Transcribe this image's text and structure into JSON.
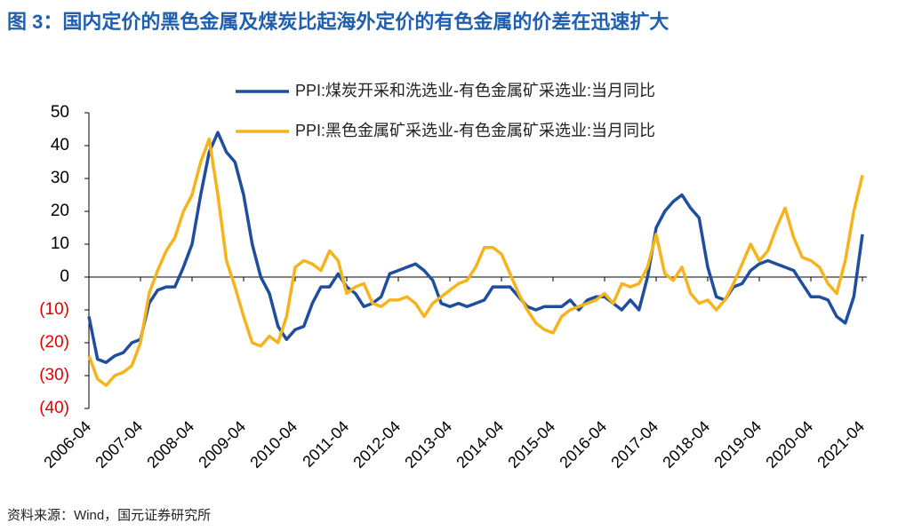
{
  "chart_data": {
    "type": "line",
    "title": "图 3：国内定价的黑色金属及煤炭比起海外定价的有色金属的价差在迅速扩大",
    "source": "资料来源：Wind，国元证券研究所",
    "x": [
      "2006-04",
      "2006-06",
      "2006-08",
      "2006-10",
      "2006-12",
      "2007-02",
      "2007-04",
      "2007-06",
      "2007-08",
      "2007-10",
      "2007-12",
      "2008-02",
      "2008-04",
      "2008-06",
      "2008-08",
      "2008-10",
      "2008-12",
      "2009-02",
      "2009-04",
      "2009-06",
      "2009-08",
      "2009-10",
      "2009-12",
      "2010-02",
      "2010-04",
      "2010-06",
      "2010-08",
      "2010-10",
      "2010-12",
      "2011-02",
      "2011-04",
      "2011-06",
      "2011-08",
      "2011-10",
      "2011-12",
      "2012-02",
      "2012-04",
      "2012-06",
      "2012-08",
      "2012-10",
      "2012-12",
      "2013-02",
      "2013-04",
      "2013-06",
      "2013-08",
      "2013-10",
      "2013-12",
      "2014-02",
      "2014-04",
      "2014-06",
      "2014-08",
      "2014-10",
      "2014-12",
      "2015-02",
      "2015-04",
      "2015-06",
      "2015-08",
      "2015-10",
      "2015-12",
      "2016-02",
      "2016-04",
      "2016-06",
      "2016-08",
      "2016-10",
      "2016-12",
      "2017-02",
      "2017-04",
      "2017-06",
      "2017-08",
      "2017-10",
      "2017-12",
      "2018-02",
      "2018-04",
      "2018-06",
      "2018-08",
      "2018-10",
      "2018-12",
      "2019-02",
      "2019-04",
      "2019-06",
      "2019-08",
      "2019-10",
      "2019-12",
      "2020-02",
      "2020-04",
      "2020-06",
      "2020-08",
      "2020-10",
      "2020-12",
      "2021-02",
      "2021-04"
    ],
    "xlim": [
      "2006-04",
      "2021-04"
    ],
    "xticks": [
      "2006-04",
      "2007-04",
      "2008-04",
      "2009-04",
      "2010-04",
      "2011-04",
      "2012-04",
      "2013-04",
      "2014-04",
      "2015-04",
      "2016-04",
      "2017-04",
      "2018-04",
      "2019-04",
      "2020-04",
      "2021-04"
    ],
    "series": [
      {
        "name": "PPI:煤炭开采和洗选业-有色金属矿采选业:当月同比",
        "color": "#1f4e9e",
        "values": [
          -12,
          -25,
          -26,
          -24,
          -23,
          -20,
          -19,
          -8,
          -4,
          -3,
          -3,
          3,
          10,
          25,
          38,
          44,
          38,
          35,
          25,
          10,
          0,
          -5,
          -15,
          -19,
          -16,
          -15,
          -8,
          -3,
          -3,
          1,
          -3,
          -5,
          -9,
          -8,
          -6,
          1,
          2,
          3,
          4,
          2,
          -1,
          -8,
          -9,
          -8,
          -9,
          -8,
          -7,
          -3,
          -3,
          -3,
          -6,
          -9,
          -10,
          -9,
          -9,
          -9,
          -7,
          -10,
          -7,
          -6,
          -6,
          -8,
          -10,
          -7,
          -10,
          0,
          15,
          20,
          23,
          25,
          21,
          18,
          3,
          -6,
          -7,
          -3,
          -2,
          2,
          4,
          5,
          4,
          3,
          2,
          -2,
          -6,
          -6,
          -7,
          -12,
          -14,
          -6,
          13
        ]
      },
      {
        "name": "PPI:黑色金属矿采选业-有色金属矿采选业:当月同比",
        "color": "#f5b41e",
        "values": [
          -24,
          -31,
          -33,
          -30,
          -29,
          -27,
          -20,
          -5,
          2,
          8,
          12,
          20,
          25,
          35,
          42,
          25,
          5,
          -3,
          -12,
          -20,
          -21,
          -18,
          -20,
          -12,
          3,
          5,
          4,
          2,
          8,
          5,
          -5,
          -3,
          -2,
          -8,
          -9,
          -7,
          -7,
          -6,
          -8,
          -12,
          -8,
          -6,
          -4,
          -2,
          -1,
          3,
          9,
          9,
          7,
          1,
          -5,
          -10,
          -14,
          -16,
          -17,
          -12,
          -10,
          -9,
          -8,
          -7,
          -5,
          -8,
          -2,
          -3,
          -2,
          3,
          13,
          1,
          -1,
          3,
          -5,
          -8,
          -7,
          -10,
          -7,
          -2,
          4,
          10,
          5,
          8,
          15,
          21,
          12,
          6,
          5,
          3,
          -2,
          -5,
          5,
          20,
          31
        ]
      }
    ],
    "ylim": [
      -40,
      50
    ],
    "yticks": [
      {
        "value": -40,
        "label": "(40)"
      },
      {
        "value": -30,
        "label": "(30)"
      },
      {
        "value": -20,
        "label": "(20)"
      },
      {
        "value": -10,
        "label": "(10)"
      },
      0,
      10,
      20,
      30,
      40,
      50
    ],
    "negative_tick_color": "#e00000",
    "legend": "top"
  }
}
